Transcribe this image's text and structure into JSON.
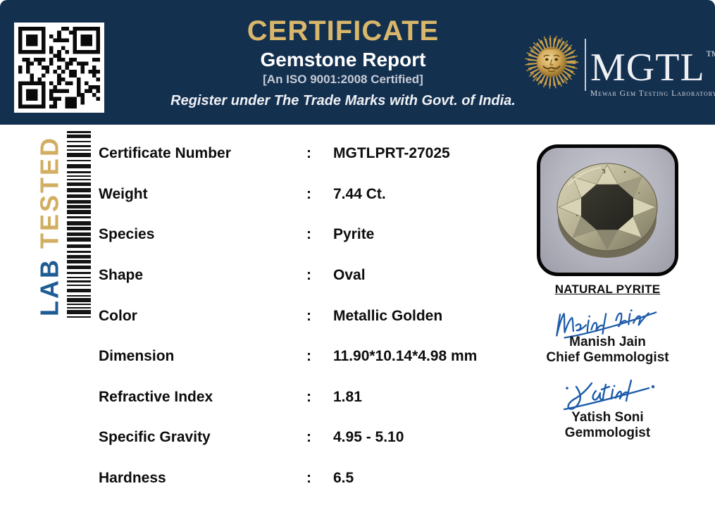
{
  "header": {
    "title": "CERTIFICATE",
    "subtitle": "Gemstone Report",
    "iso_line": "[An ISO 9001:2008 Certified]",
    "register_line": "Register under The Trade Marks with Govt. of India.",
    "colors": {
      "background": "#14304f",
      "title_gold": "#d9b76a"
    }
  },
  "logo": {
    "name": "MGTL",
    "tm": "TM",
    "tagline": "Mewar Gem Testing Laboratory"
  },
  "side_strip": {
    "lab": "LAB",
    "tested": "TESTED",
    "lab_color": "#1f5c94",
    "tested_color": "#d2ae62"
  },
  "report": {
    "rows": [
      {
        "label": "Certificate Number",
        "separator": ":",
        "value": "MGTLPRT-27025"
      },
      {
        "label": "Weight",
        "separator": ":",
        "value": "7.44 Ct."
      },
      {
        "label": "Species",
        "separator": ":",
        "value": "Pyrite"
      },
      {
        "label": "Shape",
        "separator": ":",
        "value": "Oval"
      },
      {
        "label": "Color",
        "separator": ":",
        "value": "Metallic Golden"
      },
      {
        "label": "Dimension",
        "separator": ":",
        "value": "11.90*10.14*4.98 mm"
      },
      {
        "label": "Refractive Index",
        "separator": ":",
        "value": "1.81"
      },
      {
        "label": "Specific Gravity",
        "separator": ":",
        "value": "4.95 - 5.10"
      },
      {
        "label": "Hardness",
        "separator": ":",
        "value": "6.5"
      }
    ]
  },
  "specimen": {
    "caption": "NATURAL PYRITE"
  },
  "signatories": [
    {
      "name": "Manish Jain",
      "title": "Chief Gemmologist",
      "ink_color": "#1d5caa"
    },
    {
      "name": "Yatish Soni",
      "title": "Gemmologist",
      "ink_color": "#1d5caa"
    }
  ]
}
